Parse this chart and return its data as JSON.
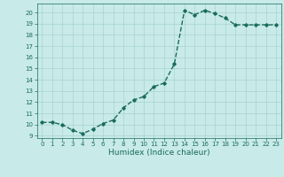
{
  "x": [
    0,
    1,
    2,
    3,
    4,
    5,
    6,
    7,
    8,
    9,
    10,
    11,
    12,
    13,
    14,
    15,
    16,
    17,
    18,
    19,
    20,
    21,
    22,
    23
  ],
  "y": [
    10.2,
    10.2,
    10.0,
    9.5,
    9.2,
    9.6,
    10.1,
    10.4,
    11.5,
    12.2,
    12.5,
    13.4,
    13.7,
    15.4,
    20.2,
    19.8,
    20.2,
    19.9,
    19.5,
    18.9,
    18.9,
    18.9,
    18.9,
    18.9
  ],
  "xlim": [
    -0.5,
    23.5
  ],
  "ylim": [
    8.8,
    20.8
  ],
  "yticks": [
    9,
    10,
    11,
    12,
    13,
    14,
    15,
    16,
    17,
    18,
    19,
    20
  ],
  "xticks": [
    0,
    1,
    2,
    3,
    4,
    5,
    6,
    7,
    8,
    9,
    10,
    11,
    12,
    13,
    14,
    15,
    16,
    17,
    18,
    19,
    20,
    21,
    22,
    23
  ],
  "xlabel": "Humidex (Indice chaleur)",
  "line_color": "#1a6b5e",
  "marker": "D",
  "marker_size": 1.8,
  "bg_color": "#c8eae8",
  "grid_color": "#a8d4d0",
  "line_width": 1.0,
  "tick_fontsize": 5.0,
  "xlabel_fontsize": 6.5
}
